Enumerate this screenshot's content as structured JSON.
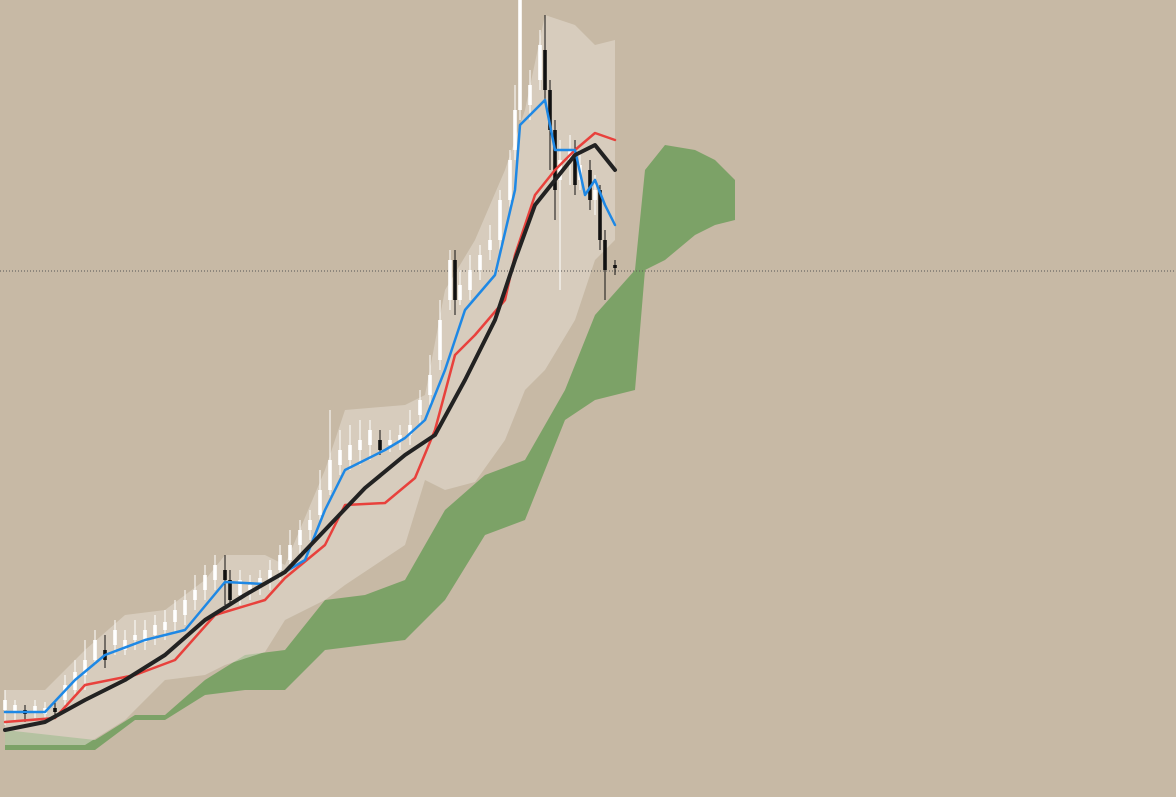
{
  "chart_data": {
    "type": "candlestick",
    "background": "#c7b9a5",
    "xlim": [
      0,
      1176
    ],
    "ylim": [
      3,
      800
    ],
    "price_line": {
      "value": 529,
      "color": "#555555"
    },
    "bands": [
      {
        "color": "#6f9e5c",
        "opacity": 0.85,
        "x": [
          5,
          95,
          135,
          165,
          205,
          245,
          285,
          325,
          365,
          405,
          445,
          485,
          525,
          565,
          595,
          635,
          645,
          665,
          695,
          715,
          735
        ],
        "upper": [
          70,
          60,
          85,
          85,
          120,
          145,
          150,
          200,
          205,
          220,
          290,
          325,
          340,
          410,
          485,
          530,
          630,
          655,
          650,
          640,
          620
        ],
        "lower": [
          50,
          50,
          80,
          80,
          105,
          110,
          110,
          150,
          155,
          160,
          200,
          265,
          280,
          380,
          400,
          410,
          530,
          540,
          565,
          575,
          580
        ]
      },
      {
        "color": "#e4ddd2",
        "opacity": 0.55,
        "x": [
          5,
          45,
          85,
          125,
          165,
          205,
          225,
          265,
          285,
          325,
          345,
          405,
          425,
          445,
          475,
          505,
          525,
          545,
          575,
          595,
          615
        ],
        "upper": [
          110,
          110,
          150,
          185,
          190,
          220,
          245,
          245,
          235,
          330,
          390,
          395,
          405,
          510,
          560,
          630,
          690,
          785,
          775,
          755,
          760
        ],
        "lower": [
          55,
          55,
          55,
          80,
          120,
          125,
          135,
          148,
          180,
          200,
          215,
          255,
          320,
          310,
          318,
          360,
          410,
          430,
          480,
          540,
          560
        ]
      }
    ],
    "lines": [
      {
        "color": "#e8413c",
        "width": 2.5,
        "x": [
          5,
          55,
          85,
          135,
          175,
          215,
          265,
          285,
          325,
          345,
          385,
          415,
          435,
          455,
          475,
          505,
          515,
          535,
          555,
          575,
          595,
          615
        ],
        "values": [
          78,
          82,
          115,
          125,
          140,
          185,
          200,
          222,
          255,
          295,
          297,
          322,
          370,
          445,
          465,
          500,
          545,
          605,
          630,
          650,
          667,
          660
        ]
      },
      {
        "color": "#1e88e5",
        "width": 2.5,
        "x": [
          5,
          45,
          75,
          105,
          145,
          185,
          225,
          265,
          305,
          325,
          345,
          385,
          405,
          425,
          445,
          465,
          495,
          515,
          520,
          545,
          555,
          575,
          585,
          595,
          605,
          615
        ],
        "values": [
          88,
          88,
          120,
          145,
          160,
          170,
          218,
          216,
          240,
          290,
          330,
          350,
          362,
          380,
          430,
          490,
          525,
          610,
          675,
          700,
          650,
          650,
          605,
          620,
          595,
          575
        ]
      },
      {
        "color": "#222222",
        "width": 4,
        "x": [
          5,
          45,
          85,
          125,
          165,
          205,
          245,
          285,
          325,
          365,
          405,
          435,
          465,
          495,
          515,
          535,
          555,
          575,
          595,
          615
        ],
        "values": [
          70,
          78,
          100,
          120,
          145,
          180,
          205,
          228,
          270,
          312,
          345,
          365,
          420,
          480,
          540,
          595,
          620,
          645,
          655,
          630
        ]
      }
    ],
    "candles": {
      "up_color": "#ffffff",
      "down_color": "#111111",
      "x": [
        5,
        15,
        25,
        35,
        45,
        55,
        65,
        75,
        85,
        95,
        105,
        115,
        125,
        135,
        145,
        155,
        165,
        175,
        185,
        195,
        205,
        215,
        225,
        230,
        240,
        250,
        260,
        270,
        280,
        290,
        300,
        310,
        320,
        330,
        340,
        350,
        360,
        370,
        380,
        390,
        400,
        410,
        420,
        430,
        440,
        450,
        455,
        460,
        470,
        480,
        490,
        500,
        510,
        515,
        520,
        530,
        540,
        545,
        550,
        555,
        560,
        570,
        575,
        580,
        590,
        595,
        600,
        605,
        615
      ],
      "open": [
        90,
        88,
        90,
        88,
        86,
        92,
        100,
        110,
        125,
        140,
        150,
        155,
        150,
        160,
        158,
        165,
        170,
        178,
        185,
        200,
        210,
        220,
        230,
        220,
        205,
        210,
        215,
        220,
        230,
        240,
        255,
        270,
        285,
        310,
        335,
        340,
        350,
        355,
        360,
        355,
        358,
        365,
        385,
        405,
        440,
        500,
        540,
        500,
        510,
        530,
        550,
        560,
        600,
        650,
        690,
        695,
        720,
        750,
        710,
        670,
        620,
        640,
        645,
        620,
        630,
        600,
        610,
        560,
        535
      ],
      "high": [
        110,
        100,
        95,
        100,
        98,
        100,
        125,
        140,
        160,
        170,
        165,
        180,
        170,
        180,
        180,
        185,
        190,
        200,
        210,
        225,
        235,
        245,
        245,
        230,
        230,
        225,
        230,
        240,
        255,
        270,
        280,
        290,
        330,
        390,
        370,
        375,
        380,
        380,
        370,
        370,
        375,
        390,
        410,
        445,
        500,
        550,
        550,
        530,
        545,
        555,
        575,
        610,
        650,
        715,
        800,
        730,
        770,
        785,
        720,
        680,
        660,
        665,
        660,
        650,
        640,
        625,
        615,
        570,
        540
      ],
      "low": [
        75,
        80,
        78,
        82,
        80,
        82,
        95,
        105,
        110,
        135,
        132,
        145,
        145,
        150,
        150,
        155,
        160,
        168,
        175,
        190,
        200,
        210,
        195,
        195,
        195,
        200,
        205,
        210,
        220,
        230,
        245,
        260,
        275,
        305,
        325,
        330,
        335,
        340,
        345,
        348,
        350,
        355,
        375,
        395,
        430,
        490,
        485,
        495,
        500,
        520,
        540,
        550,
        590,
        640,
        680,
        680,
        710,
        700,
        630,
        580,
        510,
        615,
        605,
        610,
        590,
        585,
        550,
        500,
        525
      ],
      "close": [
        100,
        95,
        86,
        94,
        92,
        88,
        115,
        128,
        140,
        160,
        140,
        170,
        160,
        165,
        170,
        175,
        178,
        190,
        200,
        210,
        225,
        235,
        220,
        200,
        220,
        215,
        222,
        230,
        245,
        255,
        270,
        280,
        310,
        340,
        350,
        355,
        360,
        370,
        350,
        360,
        365,
        375,
        400,
        425,
        480,
        540,
        500,
        515,
        530,
        545,
        560,
        600,
        640,
        690,
        800,
        715,
        755,
        710,
        670,
        610,
        640,
        650,
        615,
        635,
        600,
        610,
        560,
        530,
        532
      ]
    }
  }
}
